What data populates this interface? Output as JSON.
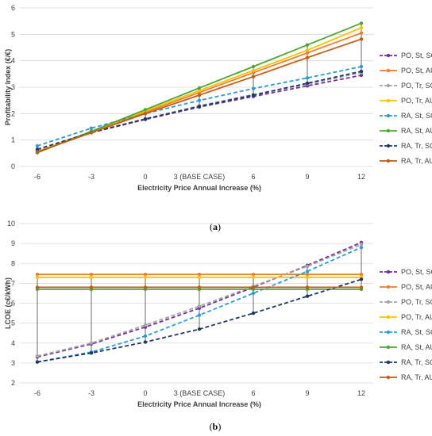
{
  "chart_data": [
    {
      "type": "line",
      "caption_letter": "a",
      "xlabel": "Electricity Price Annual Increase (%)",
      "ylabel": "Profitability Index (€/€)",
      "categories": [
        "-6",
        "-3",
        "0",
        "3 (BASE CASE)",
        "6",
        "9",
        "12"
      ],
      "ylim": [
        0,
        6
      ],
      "yticks": [
        "0",
        "1",
        "2",
        "3",
        "4",
        "5",
        "6"
      ],
      "grid": "horizontal",
      "legend_position": "right",
      "series": [
        {
          "name": "PO, St, SC",
          "color": "#7030a0",
          "dashed": true,
          "values": [
            0.58,
            1.28,
            1.78,
            2.25,
            2.65,
            3.05,
            3.45
          ]
        },
        {
          "name": "PO, St, AU",
          "color": "#ed7d31",
          "dashed": false,
          "values": [
            0.55,
            1.3,
            2.05,
            2.8,
            3.55,
            4.3,
            5.05
          ]
        },
        {
          "name": "PO, Tr, SC",
          "color": "#a5a5a5",
          "dashed": true,
          "values": [
            0.62,
            1.3,
            1.8,
            2.3,
            2.72,
            3.12,
            3.55
          ]
        },
        {
          "name": "PO, Tr, AU",
          "color": "#ffc000",
          "dashed": false,
          "values": [
            0.56,
            1.33,
            2.1,
            2.87,
            3.63,
            4.4,
            5.25
          ]
        },
        {
          "name": "RA, St, SC",
          "color": "#2e9bd6",
          "dashed": true,
          "values": [
            0.78,
            1.45,
            2.0,
            2.5,
            2.95,
            3.35,
            3.78
          ]
        },
        {
          "name": "RA, St, AU",
          "color": "#4ea72e",
          "dashed": false,
          "values": [
            0.52,
            1.33,
            2.15,
            2.97,
            3.78,
            4.6,
            5.42
          ]
        },
        {
          "name": "RA, Tr, SC",
          "color": "#1f3864",
          "dashed": true,
          "values": [
            0.65,
            1.28,
            1.8,
            2.27,
            2.7,
            3.15,
            3.6
          ]
        },
        {
          "name": "RA, Tr, AU",
          "color": "#c55a11",
          "dashed": false,
          "values": [
            0.55,
            1.28,
            2.0,
            2.7,
            3.4,
            4.12,
            4.82
          ]
        }
      ]
    },
    {
      "type": "line",
      "caption_letter": "b",
      "xlabel": "Electricity Price Annual Increase (%)",
      "ylabel": "LCOE (c€/kWh)",
      "categories": [
        "-6",
        "-3",
        "0",
        "3 (BASE CASE)",
        "6",
        "9",
        "12"
      ],
      "ylim": [
        2,
        10
      ],
      "yticks": [
        "2",
        "3",
        "4",
        "5",
        "6",
        "7",
        "8",
        "9",
        "10"
      ],
      "grid": "horizontal",
      "legend_position": "right",
      "series": [
        {
          "name": "PO, St, SC",
          "color": "#7030a0",
          "dashed": true,
          "values": [
            3.3,
            3.95,
            4.8,
            5.75,
            6.8,
            7.9,
            9.05
          ]
        },
        {
          "name": "PO, St, AU",
          "color": "#ed7d31",
          "dashed": false,
          "values": [
            7.45,
            7.45,
            7.45,
            7.45,
            7.45,
            7.45,
            7.45
          ]
        },
        {
          "name": "PO, Tr, SC",
          "color": "#a5a5a5",
          "dashed": true,
          "values": [
            3.35,
            4.0,
            4.9,
            5.85,
            6.85,
            7.85,
            8.95
          ]
        },
        {
          "name": "PO, Tr, AU",
          "color": "#ffc000",
          "dashed": false,
          "values": [
            7.3,
            7.3,
            7.3,
            7.3,
            7.3,
            7.3,
            7.3
          ]
        },
        {
          "name": "RA, St, SC",
          "color": "#2e9bd6",
          "dashed": true,
          "values": [
            3.05,
            3.55,
            4.35,
            5.4,
            6.5,
            7.6,
            8.8
          ]
        },
        {
          "name": "RA, St, AU",
          "color": "#4ea72e",
          "dashed": false,
          "values": [
            6.7,
            6.7,
            6.7,
            6.7,
            6.7,
            6.7,
            6.7
          ]
        },
        {
          "name": "RA, Tr, SC",
          "color": "#1f3864",
          "dashed": true,
          "values": [
            3.05,
            3.5,
            4.05,
            4.7,
            5.5,
            6.35,
            7.2
          ]
        },
        {
          "name": "RA, Tr, AU",
          "color": "#c55a11",
          "dashed": false,
          "values": [
            6.8,
            6.8,
            6.8,
            6.8,
            6.8,
            6.8,
            6.8
          ]
        }
      ]
    }
  ]
}
